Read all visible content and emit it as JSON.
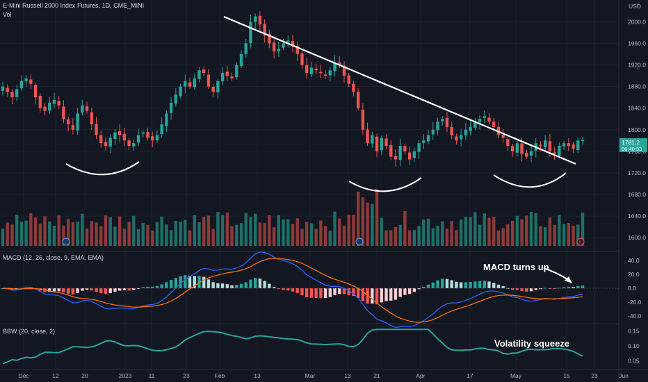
{
  "header": {
    "symbol": "E-Mini Russell 2000 Index Futures, 1D, CME_MINI",
    "vol_label": "Vol",
    "currency": "USD"
  },
  "price_badge": {
    "value": "1781.2",
    "countdown": "06:40:33",
    "color": "#26a69a"
  },
  "colors": {
    "up": "#26a69a",
    "down": "#ef5350",
    "trendline": "#ffffff",
    "macd": "#2962ff",
    "signal": "#ff6d00",
    "bbw": "#26a69a"
  },
  "price_axis": {
    "ticks": [
      "2000.0",
      "1960.0",
      "1920.0",
      "1880.0",
      "1840.0",
      "1800.0",
      "1760.0",
      "1720.0",
      "1680.0",
      "1640.0",
      "1600.0"
    ]
  },
  "macd_axis": {
    "ticks": [
      "40.0",
      "20.0",
      "0.0",
      "-20.0",
      "-40.0"
    ]
  },
  "bbw_axis": {
    "ticks": [
      "0.15",
      "0.10",
      "0.05"
    ]
  },
  "time_axis": {
    "ticks": [
      "Dec",
      "12",
      "20",
      "2023",
      "11",
      "23",
      "Feb",
      "13",
      "Mar",
      "13",
      "21",
      "Apr",
      "17",
      "May",
      "15",
      "23",
      "Jun"
    ]
  },
  "indicators": {
    "macd_label": "MACD (12, 26, close, 9, EMA, EMA)",
    "bbw_label": "BBW (20, close, 2)"
  },
  "annotations": {
    "macd_turns_up": "MACD turns up",
    "volatility_squeeze": "Volatility squeeze"
  },
  "chart_data": {
    "type": "candlestick",
    "ylim": [
      1590,
      2030
    ],
    "closes": [
      1880,
      1870,
      1860,
      1875,
      1890,
      1895,
      1885,
      1860,
      1840,
      1835,
      1850,
      1855,
      1845,
      1820,
      1810,
      1800,
      1830,
      1845,
      1835,
      1810,
      1790,
      1775,
      1770,
      1785,
      1795,
      1790,
      1780,
      1770,
      1775,
      1790,
      1795,
      1785,
      1780,
      1790,
      1810,
      1830,
      1850,
      1865,
      1880,
      1890,
      1880,
      1895,
      1910,
      1905,
      1880,
      1870,
      1890,
      1905,
      1900,
      1895,
      1920,
      1940,
      1960,
      2000,
      2010,
      1995,
      1975,
      1960,
      1945,
      1950,
      1960,
      1965,
      1955,
      1940,
      1920,
      1905,
      1915,
      1910,
      1905,
      1900,
      1910,
      1925,
      1920,
      1900,
      1885,
      1870,
      1840,
      1800,
      1775,
      1790,
      1760,
      1785,
      1770,
      1750,
      1745,
      1770,
      1760,
      1745,
      1760,
      1775,
      1780,
      1790,
      1800,
      1815,
      1820,
      1805,
      1790,
      1780,
      1790,
      1800,
      1805,
      1815,
      1820,
      1825,
      1815,
      1805,
      1790,
      1785,
      1770,
      1760,
      1775,
      1755,
      1750,
      1760,
      1775,
      1770,
      1780,
      1760,
      1755,
      1770,
      1775,
      1770,
      1765,
      1780,
      1781.2
    ],
    "volume_label_values": "relative",
    "macd_range": [
      -40,
      40
    ],
    "bbw_range": [
      0.03,
      0.16
    ]
  }
}
